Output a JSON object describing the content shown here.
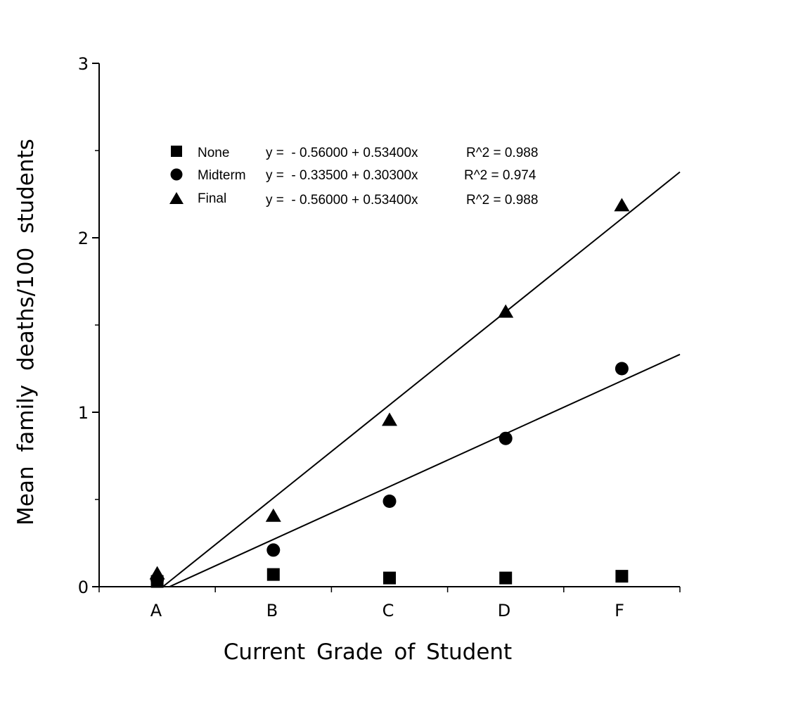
{
  "chart_data": {
    "type": "scatter",
    "title": "",
    "xlabel": "Current Grade of Student",
    "ylabel": "Mean family deaths/100 students",
    "categories": [
      "A",
      "B",
      "C",
      "D",
      "F"
    ],
    "x_range": [
      0.5,
      5.5
    ],
    "ylim": [
      0,
      3
    ],
    "y_ticks": [
      0,
      1,
      2,
      3
    ],
    "y_minor_ticks": [
      0.5,
      1.5,
      2.5
    ],
    "grid": false,
    "legend_position": "top-left",
    "series": [
      {
        "name": "None",
        "marker": "square",
        "x": [
          1,
          2,
          3,
          4,
          5
        ],
        "values": [
          0.03,
          0.07,
          0.05,
          0.05,
          0.06
        ],
        "equation": "y =  - 0.56000 + 0.53400x",
        "r2": "R^2 = 0.988",
        "fit": null
      },
      {
        "name": "Midterm",
        "marker": "circle",
        "x": [
          1,
          2,
          3,
          4,
          5
        ],
        "values": [
          0.04,
          0.21,
          0.49,
          0.85,
          1.25
        ],
        "equation": "y =  - 0.33500 + 0.30300x",
        "r2": "R^2 = 0.974",
        "fit": {
          "intercept": -0.335,
          "slope": 0.303
        }
      },
      {
        "name": "Final",
        "marker": "triangle",
        "x": [
          1,
          2,
          3,
          4,
          5
        ],
        "values": [
          0.07,
          0.4,
          0.95,
          1.57,
          2.18
        ],
        "equation": "y =  - 0.56000 + 0.53400x",
        "r2": "R^2 = 0.988",
        "fit": {
          "intercept": -0.56,
          "slope": 0.534
        }
      }
    ]
  }
}
